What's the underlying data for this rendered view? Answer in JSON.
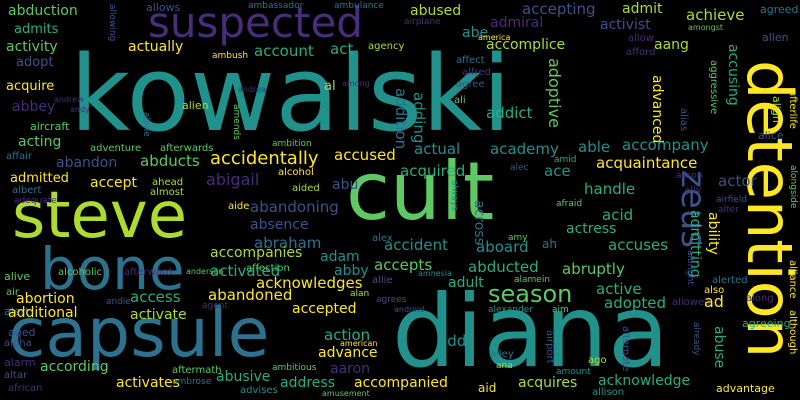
{
  "colors": {
    "background": "#000000",
    "palette": [
      "#440154",
      "#472d7b",
      "#3b528b",
      "#2c728e",
      "#21918c",
      "#28ae80",
      "#5ec962",
      "#addc30",
      "#fde725"
    ]
  },
  "words": {
    "kowalski": "kowalski",
    "diana": "diana",
    "capsule": "capsule",
    "cult": "cult",
    "detention": "detention",
    "steve": "steve",
    "bone": "bone",
    "suspected": "suspected",
    "zeus": "zeus",
    "season": "season",
    "accidentally": "accidentally",
    "abduction": "abduction",
    "activity": "activity",
    "admits": "admits",
    "adopt": "adopt",
    "acquire": "acquire",
    "abbey": "abbey",
    "aircraft": "aircraft",
    "acting": "acting",
    "affair": "affair",
    "admitted": "admitted",
    "albert": "albert",
    "adequate": "adequate",
    "alive": "alive",
    "air": "air",
    "alert": "alert",
    "abortion": "abortion",
    "additional": "additional",
    "aged": "aged",
    "alpha": "alpha",
    "alarm": "alarm",
    "altar": "altar",
    "african": "african",
    "according": "according",
    "activates": "activates",
    "abusive": "abusive",
    "address": "address",
    "accompanied": "accompanied",
    "aid": "aid",
    "acquires": "acquires",
    "acknowledge": "acknowledge",
    "advantage": "advantage",
    "although": "although",
    "alliance": "alliance",
    "alongside": "alongside",
    "afterlife": "afterlife",
    "allen": "allen",
    "agreed": "agreed",
    "abused": "abused",
    "accepting": "accepting",
    "admit": "admit",
    "achieve": "achieve",
    "activist": "activist",
    "admiral": "admiral",
    "abe": "abe",
    "account": "account",
    "act": "act",
    "actually": "actually",
    "accomplice": "accomplice",
    "aang": "aang",
    "adoptive": "adoptive",
    "advanced": "advanced",
    "accusing": "accusing",
    "addict": "addict",
    "adding": "adding",
    "addition": "addition",
    "ali": "ali",
    "alien": "alien",
    "al": "al",
    "affect": "affect",
    "alfred": "alfred",
    "agree": "agree",
    "agency": "agency",
    "ambush": "ambush",
    "allows": "allows",
    "ambassador": "ambassador",
    "ambulance": "ambulance",
    "allowing": "allowing",
    "airplane": "airplane",
    "america": "america",
    "amongst": "amongst",
    "allow": "allow",
    "afford": "afford",
    "alias": "alias",
    "aggressive": "aggressive",
    "align": "align",
    "alice": "alice",
    "among": "among",
    "andrea": "andrea",
    "andrew": "andrew",
    "andy": "andy",
    "alone": "alone",
    "amends": "amends",
    "ambition": "ambition",
    "adventure": "adventure",
    "afterwards": "afterwards",
    "abandon": "abandon",
    "abducts": "abducts",
    "abigail": "abigail",
    "accept": "accept",
    "ahead": "ahead",
    "almost": "almost",
    "aided": "aided",
    "alcohol": "alcohol",
    "aide": "aide",
    "abu": "abu",
    "accused": "accused",
    "actual": "actual",
    "academy": "academy",
    "able": "able",
    "accompany": "accompany",
    "acquaintance": "acquaintance",
    "actor": "actor",
    "amid": "amid",
    "alec": "alec",
    "ace": "ace",
    "alison": "alison",
    "ally": "ally",
    "airfield": "airfield",
    "alter": "alter",
    "afraid": "afraid",
    "ah": "ah",
    "amy": "amy",
    "always": "always",
    "across": "across",
    "acquired": "acquired",
    "handle": "handle",
    "acid": "acid",
    "actress": "actress",
    "ability": "ability",
    "admitting": "admitting",
    "abandoning": "abandoning",
    "absence": "absence",
    "abraham": "abraham",
    "adam": "adam",
    "abby": "abby",
    "alex": "alex",
    "accident": "accident",
    "aboard": "aboard",
    "accuses": "accuses",
    "alcoholic": "alcoholic",
    "afterward": "afterward",
    "anderson": "anderson",
    "affection": "affection",
    "allie": "allie",
    "amnesia": "amnesia",
    "albright": "albright",
    "acknowledges": "acknowledges",
    "accepts": "accepts",
    "abducted": "abducted",
    "abruptly": "abruptly",
    "accompanies": "accompanies",
    "activated": "activated",
    "adult": "adult",
    "alamein": "alamein",
    "active": "active",
    "alerted": "alerted",
    "also": "also",
    "access": "access",
    "abandoned": "abandoned",
    "agent": "agent",
    "agrees": "agrees",
    "alan": "alan",
    "adopted": "adopted",
    "allowed": "allowed",
    "ad": "ad",
    "along": "along",
    "andie": "andie",
    "activate": "activate",
    "accepted": "accepted",
    "android": "android",
    "alexander": "alexander",
    "aim": "aim",
    "actions": "actions",
    "abuse": "abuse",
    "agreeing": "agreeing",
    "already": "already",
    "alternate": "alternate",
    "action": "action",
    "american": "american",
    "advance": "advance",
    "aaron": "aaron",
    "add": "add",
    "alley": "alley",
    "ana": "ana",
    "airport": "airport",
    "ago": "ago",
    "aftermath": "aftermath",
    "ambitious": "ambitious",
    "ambrose": "ambrose",
    "advises": "advises",
    "amusement": "amusement",
    "amount": "amount",
    "allison": "allison"
  }
}
